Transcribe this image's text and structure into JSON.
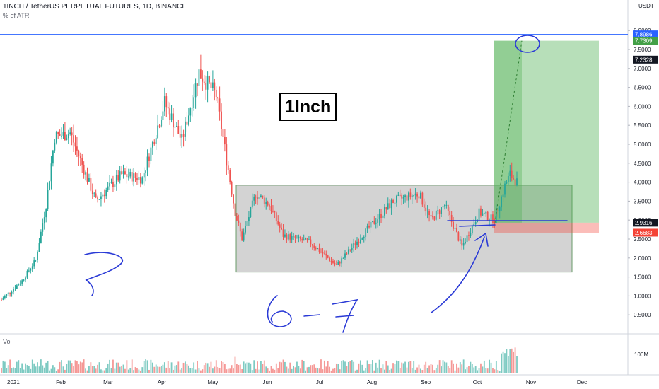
{
  "header": {
    "symbol_line": "1INCH / TetherUS PERPETUAL FUTURES, 1D, BINANCE",
    "indicator": "% of ATR",
    "currency": "USDT"
  },
  "annotation": {
    "label": "1Inch",
    "handwritten_left": "?",
    "handwritten_bottom": "6-7"
  },
  "volume_pane": {
    "label": "Vol",
    "scale_tick": "100M"
  },
  "colors": {
    "up": "#26a69a",
    "down": "#ef5350",
    "range_box": "#9e9e9e",
    "target_zone": "#4caf50",
    "stop_zone": "#f44336",
    "hline": "#2962ff",
    "pen": "#2a3ad6"
  },
  "chart_data": {
    "type": "candlestick",
    "title": "1INCH / TetherUS PERPETUAL FUTURES, 1D, BINANCE",
    "y_axis": {
      "ticks": [
        "0.5000",
        "1.0000",
        "1.5000",
        "2.0000",
        "2.5000",
        "3.0000",
        "3.5000",
        "4.0000",
        "4.5000",
        "5.0000",
        "5.5000",
        "6.0000",
        "6.5000",
        "7.0000",
        "7.5000",
        "8.0000"
      ],
      "ylim": [
        0.0,
        8.2
      ]
    },
    "x_axis": {
      "ticks": [
        "2021",
        "Feb",
        "Mar",
        "Apr",
        "May",
        "Jun",
        "Jul",
        "Aug",
        "Sep",
        "Oct",
        "Nov",
        "Dec"
      ]
    },
    "price_labels": [
      {
        "text": "7.8986",
        "value": 7.8986,
        "kind": "hline"
      },
      {
        "text": "7.7309",
        "value": 7.7309,
        "kind": "target"
      },
      {
        "text": "7.2328",
        "value": 7.2328,
        "kind": "last"
      },
      {
        "text": "2.9316",
        "value": 2.9316,
        "kind": "entry"
      },
      {
        "text": "2.6683",
        "value": 2.6683,
        "kind": "stop"
      }
    ],
    "range_box": {
      "top": 3.92,
      "bottom": 1.63,
      "from": "May 19",
      "to": "Dec 15"
    },
    "target_zone": {
      "top": 7.7309,
      "bottom": 2.9316
    },
    "stop_zone": {
      "top": 2.9316,
      "bottom": 2.6683
    },
    "ath_line": 7.8986,
    "anchors": [
      {
        "day": 0,
        "price": 0.9
      },
      {
        "day": 12,
        "price": 1.4
      },
      {
        "day": 20,
        "price": 1.95
      },
      {
        "day": 26,
        "price": 3.4
      },
      {
        "day": 31,
        "price": 5.2
      },
      {
        "day": 40,
        "price": 5.3
      },
      {
        "day": 55,
        "price": 3.5
      },
      {
        "day": 70,
        "price": 4.2
      },
      {
        "day": 82,
        "price": 4.1
      },
      {
        "day": 95,
        "price": 6.1
      },
      {
        "day": 105,
        "price": 5.1
      },
      {
        "day": 115,
        "price": 6.9
      },
      {
        "day": 125,
        "price": 6.3
      },
      {
        "day": 131,
        "price": 4.6
      },
      {
        "day": 136,
        "price": 3.2
      },
      {
        "day": 140,
        "price": 2.5
      },
      {
        "day": 148,
        "price": 3.7
      },
      {
        "day": 156,
        "price": 3.4
      },
      {
        "day": 164,
        "price": 2.6
      },
      {
        "day": 180,
        "price": 2.4
      },
      {
        "day": 195,
        "price": 1.8
      },
      {
        "day": 212,
        "price": 2.7
      },
      {
        "day": 228,
        "price": 3.5
      },
      {
        "day": 243,
        "price": 3.7
      },
      {
        "day": 250,
        "price": 3.0
      },
      {
        "day": 258,
        "price": 3.4
      },
      {
        "day": 268,
        "price": 2.3
      },
      {
        "day": 278,
        "price": 3.2
      },
      {
        "day": 287,
        "price": 3.0
      },
      {
        "day": 293,
        "price": 3.9
      },
      {
        "day": 296,
        "price": 4.2
      },
      {
        "day": 300,
        "price": 4.0
      }
    ]
  }
}
